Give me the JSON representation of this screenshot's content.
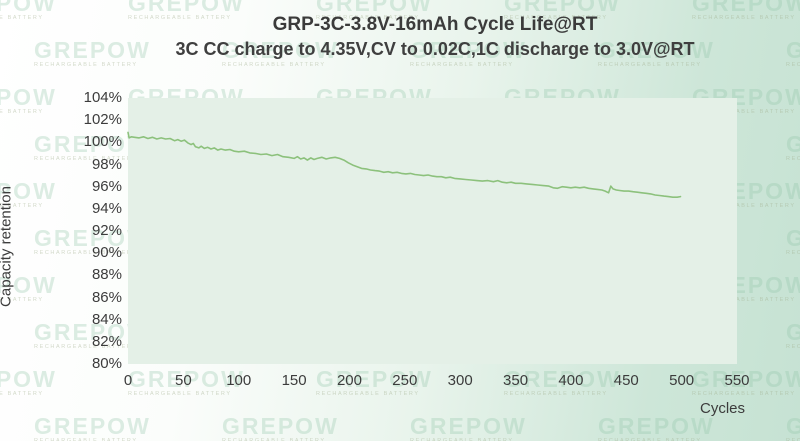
{
  "title": "GRP-3C-3.8V-16mAh Cycle Life@RT",
  "subtitle": "3C CC charge to 4.35V,CV to 0.02C,1C discharge to 3.0V@RT",
  "watermark": {
    "text": "GREPOW",
    "tagline": "RECHARGEABLE BATTERY"
  },
  "colors": {
    "line": "#8cc17c",
    "plot_bg": "#e4f0e7",
    "bg_left": "#ffffff",
    "bg_right": "#c6e2d3",
    "text": "#3c3c3c",
    "watermark": "#8fc3a4"
  },
  "chart_data": {
    "type": "line",
    "title": "GRP-3C-3.8V-16mAh Cycle Life@RT",
    "subtitle": "3C CC charge to 4.35V,CV to 0.02C,1C discharge to 3.0V@RT",
    "xlabel": "Cycles",
    "ylabel": "Capacity retention",
    "xlim": [
      0,
      550
    ],
    "ylim": [
      80,
      104
    ],
    "x_ticks": [
      "0",
      "50",
      "100",
      "150",
      "200",
      "250",
      "300",
      "350",
      "400",
      "450",
      "500",
      "550"
    ],
    "y_ticks": [
      "104%",
      "102%",
      "100%",
      "98%",
      "96%",
      "94%",
      "92%",
      "90%",
      "88%",
      "86%",
      "84%",
      "82%",
      "80%"
    ],
    "grid": false,
    "legend": "none",
    "series": [
      {
        "name": "capacity retention",
        "points": [
          [
            0,
            100.9
          ],
          [
            1,
            100.4
          ],
          [
            3,
            100.5
          ],
          [
            6,
            100.45
          ],
          [
            10,
            100.4
          ],
          [
            14,
            100.5
          ],
          [
            18,
            100.35
          ],
          [
            22,
            100.45
          ],
          [
            26,
            100.3
          ],
          [
            30,
            100.4
          ],
          [
            34,
            100.3
          ],
          [
            38,
            100.35
          ],
          [
            42,
            100.15
          ],
          [
            45,
            100.25
          ],
          [
            48,
            100.1
          ],
          [
            51,
            100.2
          ],
          [
            54,
            99.95
          ],
          [
            57,
            99.8
          ],
          [
            59,
            99.9
          ],
          [
            61,
            99.6
          ],
          [
            64,
            99.5
          ],
          [
            66,
            99.65
          ],
          [
            69,
            99.45
          ],
          [
            72,
            99.55
          ],
          [
            75,
            99.4
          ],
          [
            78,
            99.5
          ],
          [
            81,
            99.3
          ],
          [
            84,
            99.4
          ],
          [
            88,
            99.3
          ],
          [
            92,
            99.35
          ],
          [
            96,
            99.2
          ],
          [
            100,
            99.15
          ],
          [
            105,
            99.2
          ],
          [
            110,
            99.05
          ],
          [
            115,
            99.0
          ],
          [
            120,
            98.9
          ],
          [
            125,
            98.95
          ],
          [
            130,
            98.8
          ],
          [
            135,
            98.9
          ],
          [
            140,
            98.7
          ],
          [
            145,
            98.65
          ],
          [
            150,
            98.55
          ],
          [
            153,
            98.7
          ],
          [
            156,
            98.5
          ],
          [
            159,
            98.6
          ],
          [
            162,
            98.4
          ],
          [
            165,
            98.6
          ],
          [
            168,
            98.45
          ],
          [
            171,
            98.55
          ],
          [
            175,
            98.65
          ],
          [
            179,
            98.5
          ],
          [
            183,
            98.6
          ],
          [
            187,
            98.65
          ],
          [
            191,
            98.55
          ],
          [
            195,
            98.4
          ],
          [
            199,
            98.15
          ],
          [
            203,
            97.95
          ],
          [
            207,
            97.8
          ],
          [
            211,
            97.65
          ],
          [
            215,
            97.6
          ],
          [
            219,
            97.5
          ],
          [
            223,
            97.45
          ],
          [
            227,
            97.4
          ],
          [
            231,
            97.3
          ],
          [
            235,
            97.35
          ],
          [
            239,
            97.25
          ],
          [
            243,
            97.3
          ],
          [
            247,
            97.2
          ],
          [
            251,
            97.15
          ],
          [
            255,
            97.2
          ],
          [
            259,
            97.1
          ],
          [
            263,
            97.05
          ],
          [
            267,
            97.0
          ],
          [
            271,
            97.05
          ],
          [
            275,
            96.95
          ],
          [
            279,
            96.9
          ],
          [
            283,
            96.9
          ],
          [
            287,
            96.8
          ],
          [
            291,
            96.85
          ],
          [
            295,
            96.75
          ],
          [
            300,
            96.7
          ],
          [
            305,
            96.65
          ],
          [
            310,
            96.6
          ],
          [
            315,
            96.55
          ],
          [
            320,
            96.5
          ],
          [
            325,
            96.55
          ],
          [
            330,
            96.45
          ],
          [
            334,
            96.55
          ],
          [
            338,
            96.4
          ],
          [
            342,
            96.35
          ],
          [
            346,
            96.4
          ],
          [
            350,
            96.3
          ],
          [
            355,
            96.3
          ],
          [
            360,
            96.25
          ],
          [
            365,
            96.2
          ],
          [
            370,
            96.15
          ],
          [
            375,
            96.1
          ],
          [
            380,
            96.05
          ],
          [
            384,
            95.9
          ],
          [
            388,
            95.85
          ],
          [
            392,
            96.0
          ],
          [
            396,
            95.95
          ],
          [
            400,
            95.9
          ],
          [
            404,
            95.95
          ],
          [
            408,
            95.9
          ],
          [
            412,
            95.95
          ],
          [
            416,
            95.85
          ],
          [
            420,
            95.8
          ],
          [
            424,
            95.75
          ],
          [
            428,
            95.7
          ],
          [
            431,
            95.6
          ],
          [
            434,
            95.45
          ],
          [
            436,
            96.05
          ],
          [
            438,
            95.8
          ],
          [
            441,
            95.7
          ],
          [
            444,
            95.65
          ],
          [
            448,
            95.6
          ],
          [
            452,
            95.6
          ],
          [
            456,
            95.55
          ],
          [
            460,
            95.5
          ],
          [
            464,
            95.45
          ],
          [
            468,
            95.4
          ],
          [
            472,
            95.35
          ],
          [
            476,
            95.25
          ],
          [
            480,
            95.2
          ],
          [
            484,
            95.15
          ],
          [
            488,
            95.1
          ],
          [
            492,
            95.05
          ],
          [
            496,
            95.05
          ],
          [
            499,
            95.1
          ]
        ]
      }
    ]
  }
}
